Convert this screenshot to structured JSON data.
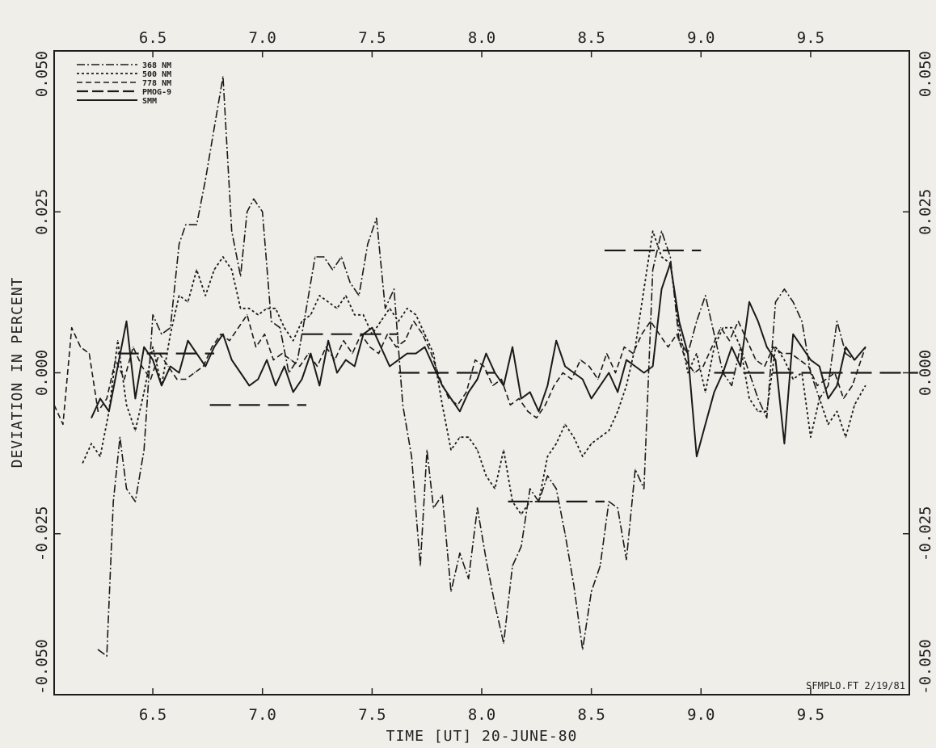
{
  "chart_data": {
    "type": "line",
    "xlabel": "TIME [UT] 20-JUNE-80",
    "ylabel": "DEVIATION IN PERCENT",
    "xlim": [
      6.05,
      9.95
    ],
    "ylim": [
      -0.05,
      0.05
    ],
    "x_ticks": [
      6.5,
      7.0,
      7.5,
      8.0,
      8.5,
      9.0,
      9.5
    ],
    "x_tick_labels": [
      "6.5",
      "7.0",
      "7.5",
      "8.0",
      "8.5",
      "9.0",
      "9.5"
    ],
    "y_ticks": [
      -0.05,
      -0.025,
      0.0,
      0.025,
      0.05
    ],
    "y_tick_labels": [
      "-0.050",
      "-0.025",
      "0.000",
      "0.025",
      "0.050"
    ],
    "legend_position": "top-left",
    "annotation": "SFMPLO.FT 2/19/81",
    "series": [
      {
        "name": "368 NM",
        "style": "dashdot",
        "x": [
          6.25,
          6.29,
          6.32,
          6.35,
          6.38,
          6.42,
          6.46,
          6.5,
          6.54,
          6.58,
          6.62,
          6.65,
          6.7,
          6.74,
          6.78,
          6.82,
          6.86,
          6.9,
          6.93,
          6.96,
          7.0,
          7.04,
          7.08,
          7.12,
          7.16,
          7.2,
          7.24,
          7.28,
          7.32,
          7.36,
          7.4,
          7.44,
          7.48,
          7.52,
          7.56,
          7.6,
          7.64,
          7.68,
          7.72,
          7.75,
          7.78,
          7.82,
          7.86,
          7.9,
          7.94,
          7.98,
          8.02,
          8.06,
          8.1,
          8.14,
          8.18,
          8.22,
          8.26,
          8.3,
          8.34,
          8.38,
          8.42,
          8.46,
          8.5,
          8.54,
          8.58,
          8.62,
          8.66,
          8.7,
          8.74,
          8.78,
          8.82,
          8.86,
          8.9,
          8.94,
          8.98,
          9.02,
          9.06,
          9.1,
          9.14,
          9.18,
          9.22,
          9.26,
          9.3,
          9.34,
          9.38,
          9.42,
          9.46,
          9.5,
          9.54,
          9.58,
          9.62,
          9.66,
          9.7,
          9.75
        ],
        "y": [
          -0.043,
          -0.044,
          -0.02,
          -0.01,
          -0.018,
          -0.02,
          -0.012,
          0.009,
          0.006,
          0.007,
          0.02,
          0.023,
          0.023,
          0.03,
          0.038,
          0.046,
          0.022,
          0.015,
          0.025,
          0.027,
          0.025,
          0.008,
          0.007,
          0.0,
          0.002,
          0.01,
          0.018,
          0.018,
          0.016,
          0.018,
          0.014,
          0.012,
          0.02,
          0.024,
          0.01,
          0.013,
          -0.005,
          -0.013,
          -0.03,
          -0.012,
          -0.021,
          -0.019,
          -0.034,
          -0.028,
          -0.032,
          -0.021,
          -0.029,
          -0.036,
          -0.042,
          -0.03,
          -0.027,
          -0.018,
          -0.02,
          -0.016,
          -0.018,
          -0.025,
          -0.033,
          -0.043,
          -0.034,
          -0.03,
          -0.02,
          -0.021,
          -0.029,
          -0.015,
          -0.018,
          0.016,
          0.022,
          0.018,
          0.005,
          0.003,
          0.008,
          0.012,
          0.006,
          0.0,
          -0.002,
          0.004,
          0.0,
          -0.004,
          -0.007,
          0.011,
          0.013,
          0.011,
          0.008,
          0.0,
          -0.004,
          -0.002,
          0.008,
          0.003,
          0.002,
          0.004
        ]
      },
      {
        "name": "500 NM",
        "style": "dotted",
        "x": [
          6.18,
          6.22,
          6.26,
          6.3,
          6.34,
          6.38,
          6.42,
          6.46,
          6.5,
          6.54,
          6.58,
          6.62,
          6.66,
          6.7,
          6.74,
          6.78,
          6.82,
          6.86,
          6.9,
          6.94,
          6.98,
          7.02,
          7.06,
          7.1,
          7.14,
          7.18,
          7.22,
          7.26,
          7.3,
          7.34,
          7.38,
          7.42,
          7.46,
          7.5,
          7.54,
          7.58,
          7.62,
          7.66,
          7.7,
          7.74,
          7.78,
          7.82,
          7.86,
          7.9,
          7.94,
          7.98,
          8.02,
          8.06,
          8.1,
          8.14,
          8.18,
          8.22,
          8.26,
          8.3,
          8.34,
          8.38,
          8.42,
          8.46,
          8.5,
          8.54,
          8.58,
          8.62,
          8.66,
          8.7,
          8.74,
          8.78,
          8.82,
          8.86,
          8.9,
          8.94,
          8.98,
          9.02,
          9.06,
          9.1,
          9.14,
          9.18,
          9.22,
          9.26,
          9.3,
          9.34,
          9.38,
          9.42,
          9.46,
          9.5,
          9.54,
          9.58,
          9.62,
          9.66,
          9.7,
          9.75
        ],
        "y": [
          -0.014,
          -0.011,
          -0.013,
          -0.006,
          0.005,
          -0.005,
          -0.009,
          -0.003,
          0.004,
          -0.002,
          0.006,
          0.012,
          0.011,
          0.016,
          0.012,
          0.016,
          0.018,
          0.016,
          0.01,
          0.01,
          0.009,
          0.01,
          0.01,
          0.007,
          0.005,
          0.008,
          0.009,
          0.012,
          0.011,
          0.01,
          0.012,
          0.009,
          0.009,
          0.006,
          0.008,
          0.01,
          0.008,
          0.01,
          0.009,
          0.006,
          0.003,
          -0.005,
          -0.012,
          -0.01,
          -0.01,
          -0.012,
          -0.016,
          -0.018,
          -0.012,
          -0.02,
          -0.022,
          -0.02,
          -0.02,
          -0.013,
          -0.011,
          -0.008,
          -0.01,
          -0.013,
          -0.011,
          -0.01,
          -0.009,
          -0.006,
          -0.002,
          0.004,
          0.013,
          0.022,
          0.018,
          0.017,
          0.007,
          0.0,
          0.003,
          -0.003,
          0.004,
          0.007,
          0.007,
          0.004,
          -0.004,
          -0.006,
          -0.006,
          0.004,
          0.002,
          -0.001,
          0.0,
          -0.01,
          -0.004,
          -0.008,
          -0.006,
          -0.01,
          -0.005,
          -0.002
        ]
      },
      {
        "name": "778 NM",
        "style": "dashed",
        "x": [
          6.05,
          6.09,
          6.13,
          6.17,
          6.21,
          6.25,
          6.29,
          6.33,
          6.37,
          6.41,
          6.45,
          6.49,
          6.53,
          6.57,
          6.61,
          6.65,
          6.69,
          6.73,
          6.77,
          6.81,
          6.85,
          6.89,
          6.93,
          6.97,
          7.01,
          7.05,
          7.09,
          7.13,
          7.17,
          7.21,
          7.25,
          7.29,
          7.33,
          7.37,
          7.41,
          7.45,
          7.49,
          7.53,
          7.57,
          7.61,
          7.65,
          7.69,
          7.73,
          7.77,
          7.81,
          7.85,
          7.89,
          7.93,
          7.97,
          8.01,
          8.05,
          8.09,
          8.13,
          8.17,
          8.21,
          8.25,
          8.29,
          8.33,
          8.37,
          8.41,
          8.45,
          8.49,
          8.53,
          8.57,
          8.61,
          8.65,
          8.69,
          8.73,
          8.77,
          8.81,
          8.85,
          8.89,
          8.93,
          8.97,
          9.01,
          9.05,
          9.09,
          9.13,
          9.17,
          9.21,
          9.25,
          9.29,
          9.33,
          9.37,
          9.41,
          9.45,
          9.49,
          9.53,
          9.57,
          9.61,
          9.65,
          9.69,
          9.75
        ],
        "y": [
          -0.005,
          -0.008,
          0.007,
          0.004,
          0.003,
          -0.006,
          -0.004,
          0.002,
          -0.001,
          0.004,
          0.001,
          -0.001,
          0.003,
          0.001,
          -0.001,
          -0.001,
          0.0,
          0.001,
          0.004,
          0.006,
          0.005,
          0.007,
          0.009,
          0.004,
          0.006,
          0.002,
          0.003,
          0.002,
          0.001,
          0.003,
          0.001,
          0.004,
          0.002,
          0.005,
          0.003,
          0.006,
          0.004,
          0.003,
          0.006,
          0.004,
          0.005,
          0.008,
          0.006,
          0.003,
          -0.001,
          -0.004,
          -0.005,
          -0.003,
          0.002,
          0.001,
          -0.002,
          -0.001,
          -0.005,
          -0.004,
          -0.006,
          -0.007,
          -0.005,
          -0.002,
          0.0,
          -0.001,
          0.002,
          0.001,
          -0.001,
          0.003,
          0.0,
          0.004,
          0.003,
          0.006,
          0.008,
          0.006,
          0.004,
          0.006,
          0.002,
          0.0,
          0.001,
          0.004,
          0.007,
          0.005,
          0.008,
          0.005,
          0.002,
          0.001,
          0.004,
          0.003,
          0.003,
          0.002,
          0.001,
          -0.002,
          -0.001,
          0.0,
          -0.004,
          -0.002,
          0.004
        ]
      },
      {
        "name": "PMOG-9",
        "style": "longdash",
        "x": [
          6.34,
          6.76,
          7.18,
          7.62,
          8.12,
          8.56,
          9.06,
          9.55
        ],
        "y": [
          0.003,
          -0.005,
          0.006,
          0.0,
          -0.02,
          0.019,
          0.0,
          0.0
        ]
      },
      {
        "name": "SMM",
        "style": "solid",
        "x": [
          6.22,
          6.26,
          6.3,
          6.34,
          6.38,
          6.42,
          6.46,
          6.5,
          6.54,
          6.58,
          6.62,
          6.66,
          6.7,
          6.74,
          6.78,
          6.82,
          6.86,
          6.9,
          6.94,
          6.98,
          7.02,
          7.06,
          7.1,
          7.14,
          7.18,
          7.22,
          7.26,
          7.3,
          7.34,
          7.38,
          7.42,
          7.46,
          7.5,
          7.54,
          7.58,
          7.62,
          7.66,
          7.7,
          7.74,
          7.78,
          7.82,
          7.86,
          7.9,
          7.94,
          7.98,
          8.02,
          8.06,
          8.1,
          8.14,
          8.18,
          8.22,
          8.26,
          8.3,
          8.34,
          8.38,
          8.42,
          8.46,
          8.5,
          8.54,
          8.58,
          8.62,
          8.66,
          8.7,
          8.74,
          8.78,
          8.82,
          8.86,
          8.9,
          8.94,
          8.98,
          9.02,
          9.06,
          9.1,
          9.14,
          9.18,
          9.22,
          9.26,
          9.3,
          9.34,
          9.38,
          9.42,
          9.46,
          9.5,
          9.54,
          9.58,
          9.62,
          9.66,
          9.7,
          9.75
        ],
        "y": [
          -0.007,
          -0.004,
          -0.006,
          0.001,
          0.008,
          -0.004,
          0.004,
          0.002,
          -0.002,
          0.001,
          0.0,
          0.005,
          0.003,
          0.001,
          0.004,
          0.006,
          0.002,
          0.0,
          -0.002,
          -0.001,
          0.002,
          -0.002,
          0.001,
          -0.003,
          -0.001,
          0.003,
          -0.002,
          0.005,
          0.0,
          0.002,
          0.001,
          0.006,
          0.007,
          0.004,
          0.001,
          0.002,
          0.003,
          0.003,
          0.004,
          0.001,
          -0.002,
          -0.004,
          -0.006,
          -0.003,
          -0.001,
          0.003,
          0.0,
          -0.002,
          0.004,
          -0.004,
          -0.003,
          -0.006,
          -0.002,
          0.005,
          0.001,
          0.0,
          -0.001,
          -0.004,
          -0.002,
          0.0,
          -0.003,
          0.002,
          0.001,
          0.0,
          0.001,
          0.013,
          0.017,
          0.008,
          0.003,
          -0.013,
          -0.008,
          -0.003,
          0.0,
          0.004,
          0.001,
          0.011,
          0.008,
          0.004,
          0.002,
          -0.011,
          0.006,
          0.004,
          0.002,
          0.001,
          -0.004,
          -0.002,
          0.004,
          0.002,
          0.004
        ]
      }
    ]
  }
}
